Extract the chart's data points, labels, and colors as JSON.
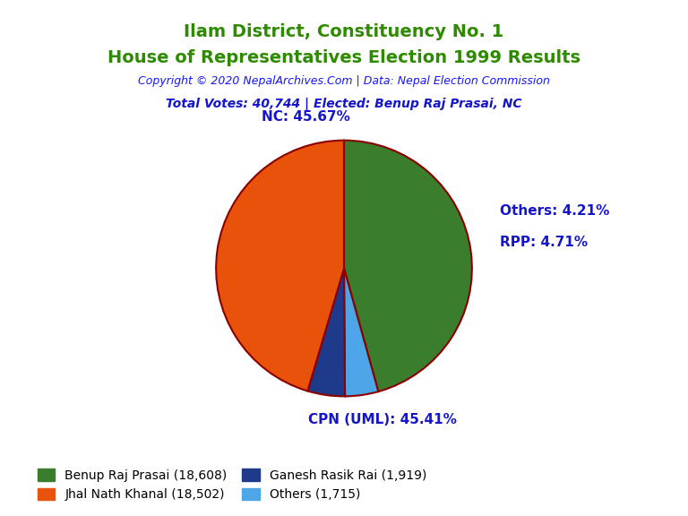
{
  "title_line1": "Ilam District, Constituency No. 1",
  "title_line2": "House of Representatives Election 1999 Results",
  "title_color": "#2E8B00",
  "copyright_text": "Copyright © 2020 NepalArchives.Com | Data: Nepal Election Commission",
  "copyright_color": "#1515FF",
  "total_votes_text": "Total Votes: 40,744 | Elected: Benup Raj Prasai, NC",
  "total_votes_color": "#1515CC",
  "slices": [
    {
      "label": "NC",
      "value": 18608,
      "pct": 45.67,
      "color": "#3A7D2C"
    },
    {
      "label": "CPN (UML)",
      "value": 18502,
      "pct": 45.41,
      "color": "#E8520A"
    },
    {
      "label": "RPP",
      "value": 1919,
      "pct": 4.71,
      "color": "#1F3A8A"
    },
    {
      "label": "Others",
      "value": 1715,
      "pct": 4.21,
      "color": "#4DA6E8"
    }
  ],
  "wedge_edge_color": "#8B0000",
  "wedge_edge_width": 1.5,
  "label_color": "#1515CC",
  "label_fontsize": 11,
  "legend_entries": [
    {
      "label": "Benup Raj Prasai (18,608)",
      "color": "#3A7D2C"
    },
    {
      "label": "Jhal Nath Khanal (18,502)",
      "color": "#E8520A"
    },
    {
      "label": "Ganesh Rasik Rai (1,919)",
      "color": "#1F3A8A"
    },
    {
      "label": "Others (1,715)",
      "color": "#4DA6E8"
    }
  ],
  "background_color": "#FFFFFF"
}
